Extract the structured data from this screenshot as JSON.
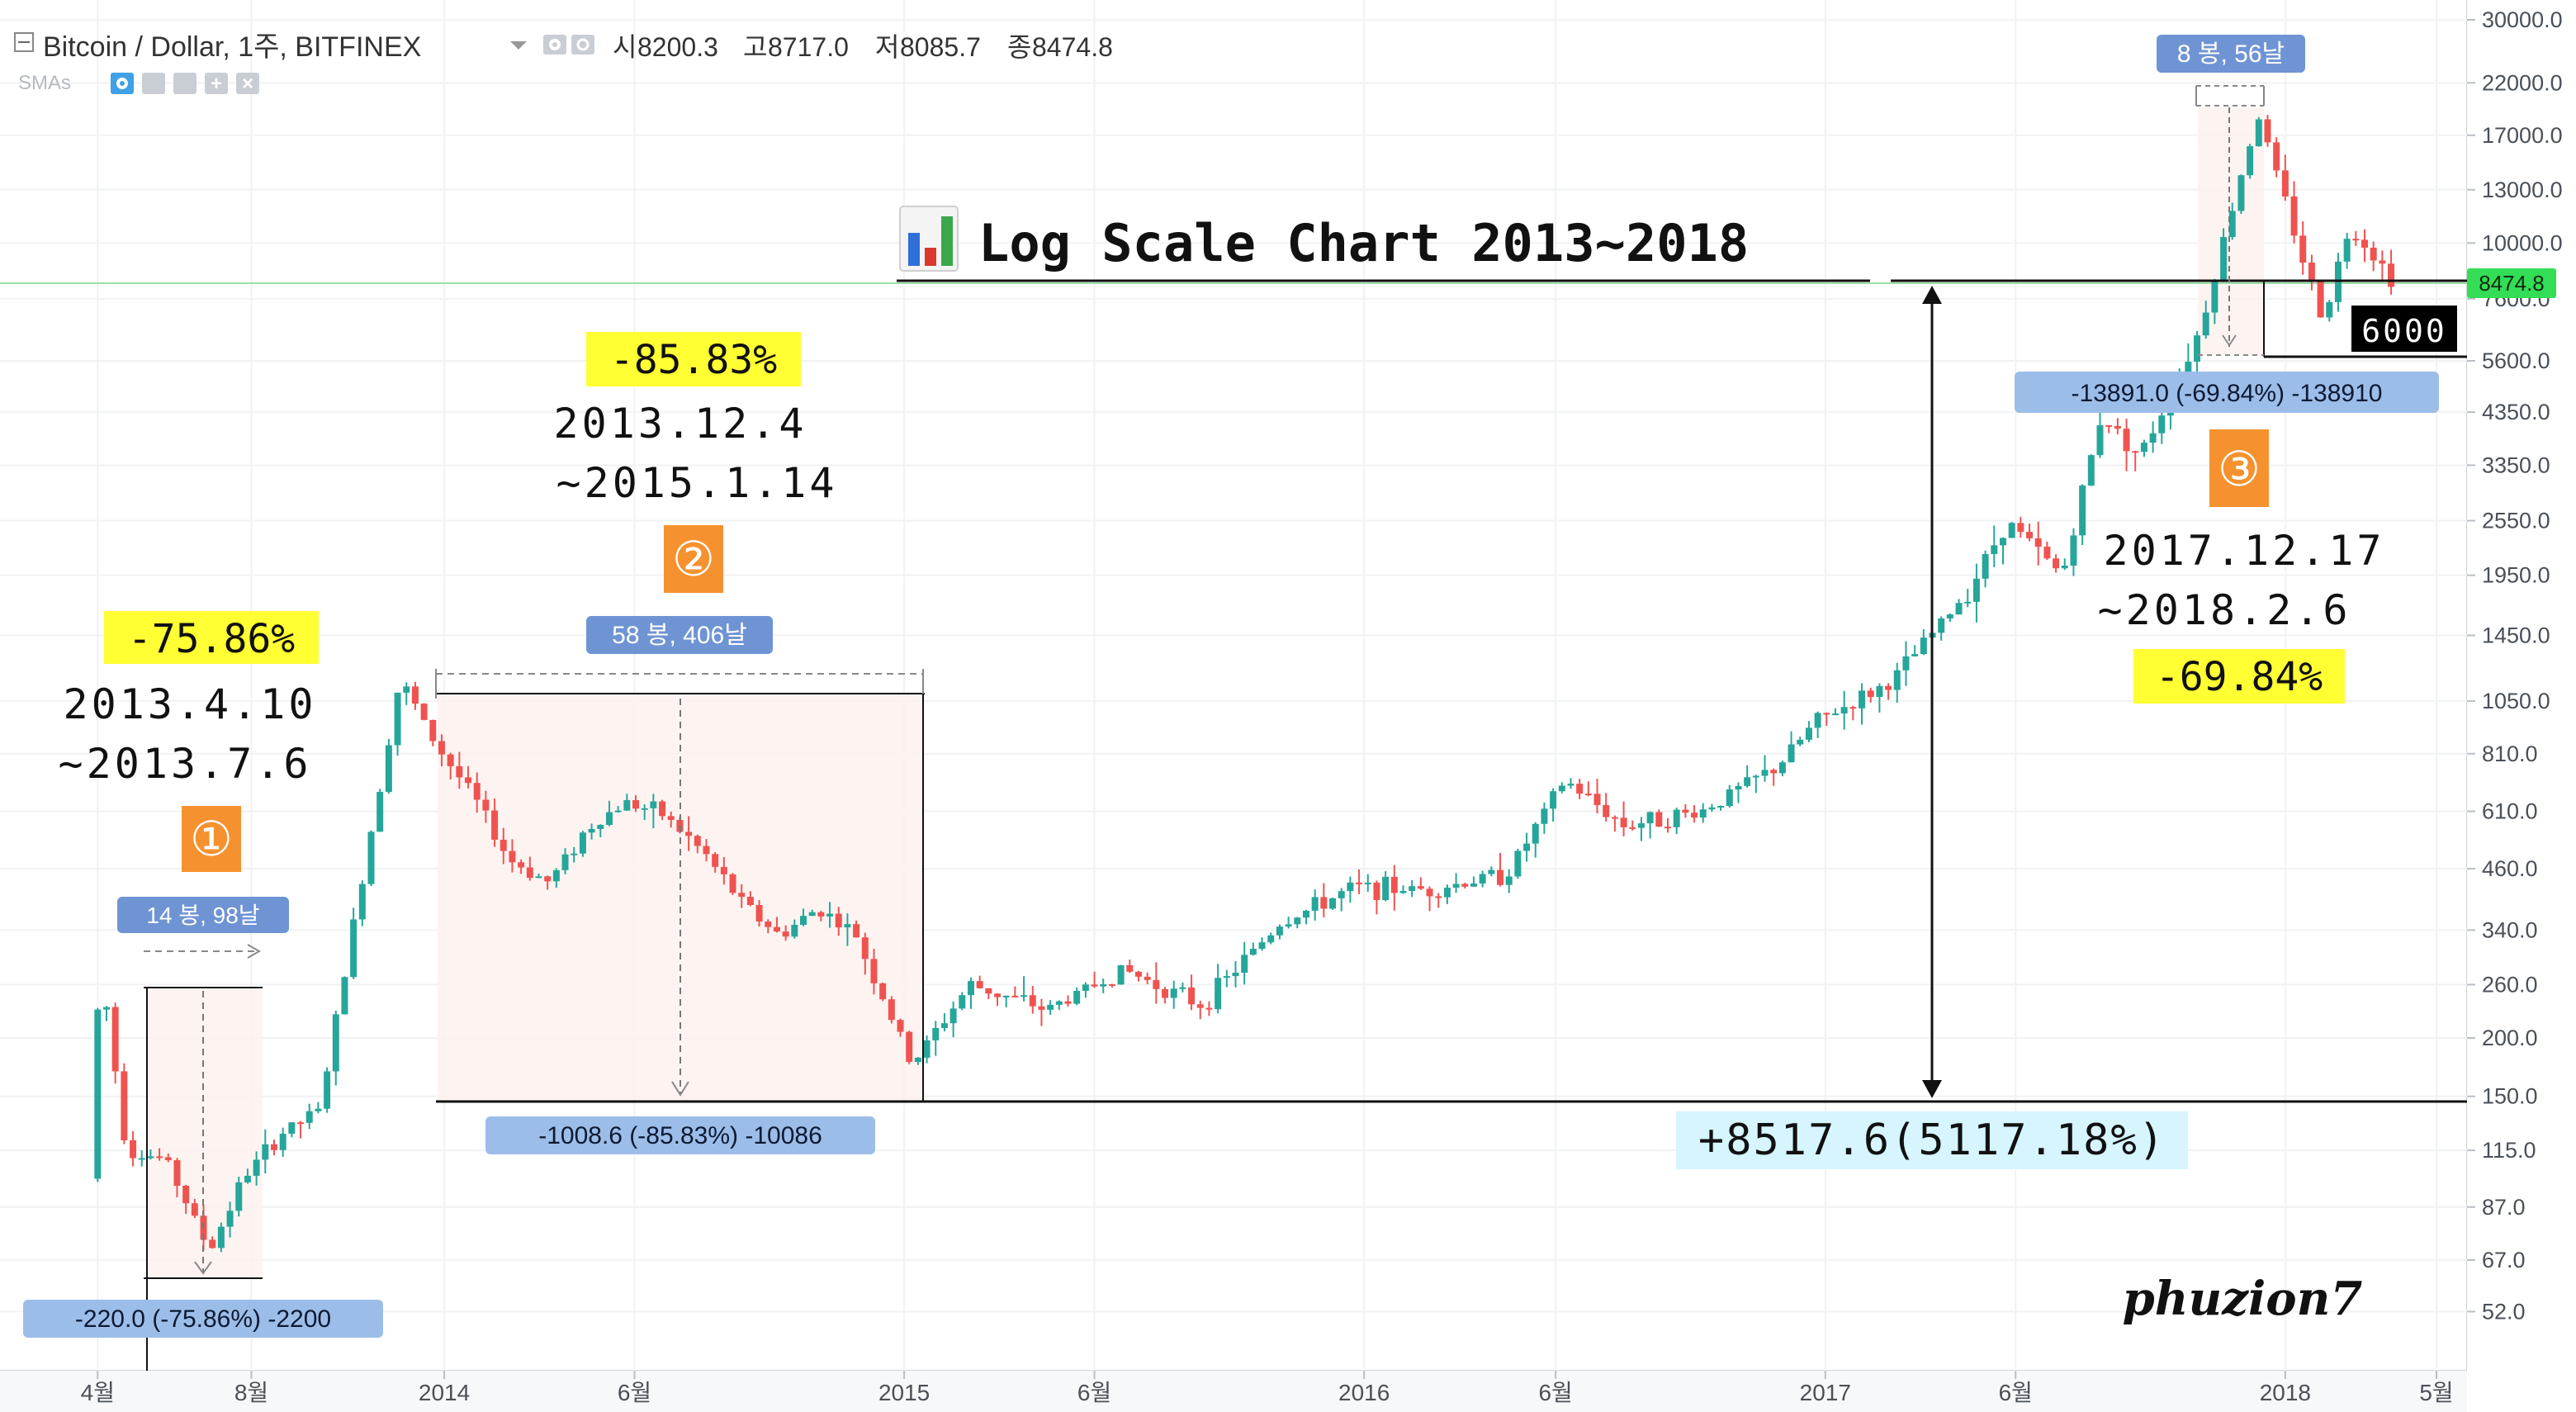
{
  "header": {
    "symbol_title": "Bitcoin / Dollar, 1주, BITFINEX",
    "open_label": "시",
    "open_value": "8200.3",
    "high_label": "고",
    "high_value": "8717.0",
    "low_label": "저",
    "low_value": "8085.7",
    "close_label": "종",
    "close_value": "8474.8",
    "indicator": "SMAs"
  },
  "chart_title": "Log Scale Chart 2013~2018",
  "last_price_label": "8474.8",
  "support_label": "6000",
  "signature": "phuzion7",
  "colors": {
    "up": "#26a69a",
    "down": "#ef5350",
    "badge": "#6f94d4",
    "badge_light": "#9cbde8",
    "highlight": "#ffff33",
    "orange": "#f5922f",
    "cyan_box": "#d6f5ff",
    "price_green": "#33dd55"
  },
  "annotations": {
    "a1": {
      "pct": "-75.86%",
      "date_start": "2013.4.10",
      "date_end": "~2013.7.6",
      "number": "①",
      "bars": "14 봉, 98날",
      "measure": "-220.0 (-75.86%) -2200"
    },
    "a2": {
      "pct": "-85.83%",
      "date_start": "2013.12.4",
      "date_end": "~2015.1.14",
      "number": "②",
      "bars": "58 봉, 406날",
      "measure": "-1008.6 (-85.83%) -10086"
    },
    "a3": {
      "pct": "-69.84%",
      "date_start": "2017.12.17",
      "date_end": "~2018.2.6",
      "number": "③",
      "bars": "8 봉, 56날",
      "measure": "-13891.0 (-69.84%) -138910"
    },
    "rise": "+8517.6(5117.18%)"
  },
  "chart_data": {
    "type": "candlestick",
    "symbol": "BTCUSD",
    "exchange": "BITFINEX",
    "interval": "1W",
    "scale": "log",
    "ylim": [
      45,
      30000
    ],
    "y_ticks": [
      "30000.0",
      "22000.0",
      "17000.0",
      "13000.0",
      "10000.0",
      "7600.0",
      "5600.0",
      "4350.0",
      "3350.0",
      "2550.0",
      "1950.0",
      "1450.0",
      "1050.0",
      "810.0",
      "610.0",
      "460.0",
      "340.0",
      "260.0",
      "200.0",
      "150.0",
      "115.0",
      "87.0",
      "67.0",
      "52.0"
    ],
    "x_ticks": [
      "4월",
      "8월",
      "2014",
      "6월",
      "2015",
      "6월",
      "2016",
      "6월",
      "2017",
      "6월",
      "2018",
      "5월"
    ],
    "last_price": 8474.8,
    "series": [
      {
        "points": [
          [
            "2013-04-01",
            100
          ],
          [
            "2013-04-10",
            290
          ],
          [
            "2013-05-01",
            115
          ],
          [
            "2013-06-01",
            110
          ],
          [
            "2013-07-06",
            70
          ],
          [
            "2013-08-01",
            100
          ],
          [
            "2013-09-01",
            125
          ],
          [
            "2013-10-01",
            140
          ],
          [
            "2013-11-01",
            400
          ],
          [
            "2013-12-04",
            1175
          ],
          [
            "2014-01-01",
            850
          ],
          [
            "2014-02-01",
            650
          ],
          [
            "2014-03-01",
            480
          ],
          [
            "2014-04-01",
            430
          ],
          [
            "2014-05-01",
            560
          ],
          [
            "2014-06-01",
            640
          ],
          [
            "2014-07-01",
            600
          ],
          [
            "2014-08-01",
            500
          ],
          [
            "2014-09-01",
            390
          ],
          [
            "2014-10-01",
            330
          ],
          [
            "2014-11-01",
            380
          ],
          [
            "2014-12-01",
            330
          ],
          [
            "2015-01-14",
            175
          ],
          [
            "2015-03-01",
            260
          ],
          [
            "2015-05-01",
            230
          ],
          [
            "2015-07-01",
            280
          ],
          [
            "2015-09-01",
            235
          ],
          [
            "2015-11-01",
            350
          ],
          [
            "2016-01-01",
            420
          ],
          [
            "2016-03-01",
            415
          ],
          [
            "2016-05-01",
            450
          ],
          [
            "2016-06-15",
            710
          ],
          [
            "2016-08-01",
            570
          ],
          [
            "2016-10-01",
            610
          ],
          [
            "2016-12-01",
            760
          ],
          [
            "2017-01-01",
            950
          ],
          [
            "2017-03-01",
            1150
          ],
          [
            "2017-05-01",
            1800
          ],
          [
            "2017-06-01",
            2550
          ],
          [
            "2017-07-15",
            1950
          ],
          [
            "2017-08-15",
            4300
          ],
          [
            "2017-09-15",
            3500
          ],
          [
            "2017-11-01",
            6500
          ],
          [
            "2017-12-17",
            19000
          ],
          [
            "2018-01-01",
            14000
          ],
          [
            "2018-02-06",
            6900
          ],
          [
            "2018-03-01",
            11000
          ],
          [
            "2018-04-01",
            8474.8
          ]
        ]
      }
    ],
    "annotations": [
      {
        "label": "①",
        "start": "2013.4.10",
        "end": "~2013.7.6",
        "change": "-75.86%",
        "bars": 14,
        "days": 98
      },
      {
        "label": "②",
        "start": "2013.12.4",
        "end": "~2015.1.14",
        "change": "-85.83%",
        "bars": 58,
        "days": 406
      },
      {
        "label": "③",
        "start": "2017.12.17",
        "end": "~2018.2.6",
        "change": "-69.84%",
        "bars": 8,
        "days": 56
      }
    ],
    "support_level": 6000,
    "rise_from_low": "+8517.6(5117.18%)"
  }
}
